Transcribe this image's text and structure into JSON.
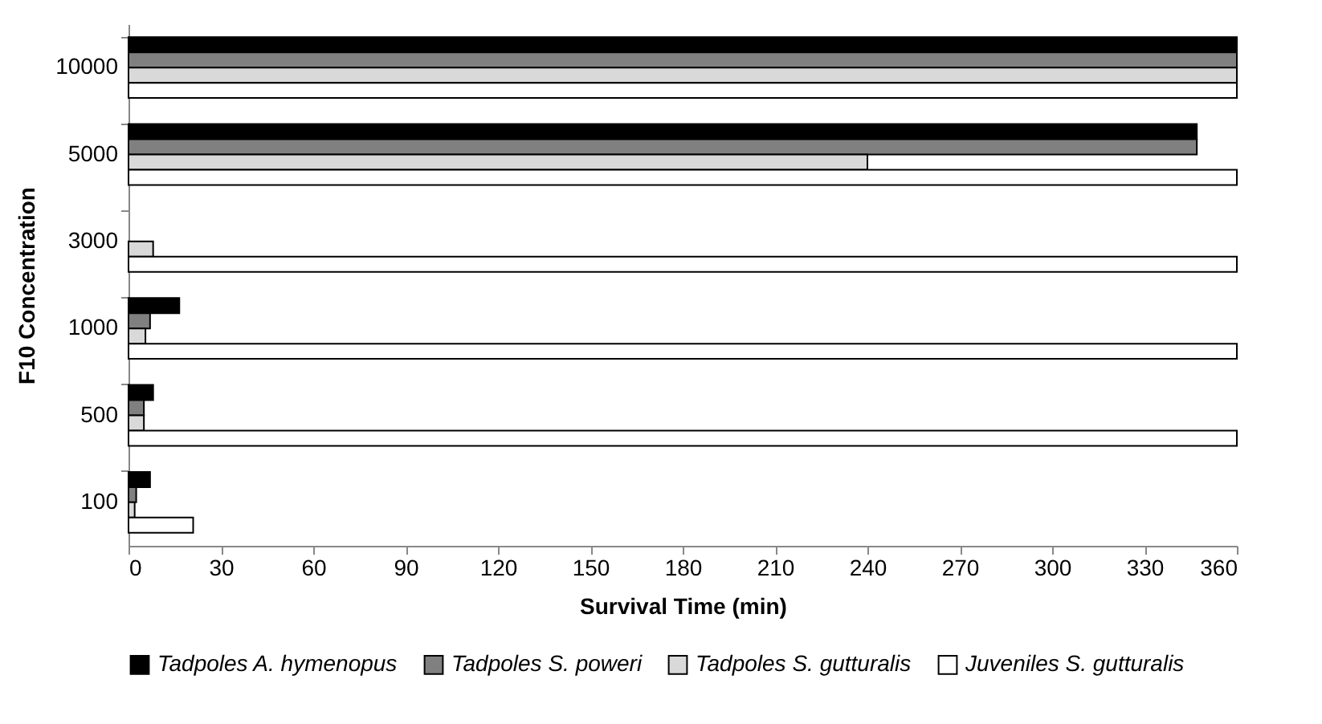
{
  "chart_data": {
    "type": "bar",
    "orientation": "horizontal",
    "xlabel": "Survival Time (min)",
    "ylabel": "F10 Concentration",
    "categories": [
      "10000",
      "5000",
      "3000",
      "1000",
      "500",
      "100"
    ],
    "series": [
      {
        "name": "Tadpoles A. hymenopus",
        "color": "#000000",
        "values": [
          360,
          347,
          null,
          16.5,
          8,
          7
        ]
      },
      {
        "name": "Tadpoles S. poweri",
        "color": "#808080",
        "values": [
          360,
          347,
          null,
          7,
          5,
          2.5
        ]
      },
      {
        "name": "Tadpoles S. gutturalis",
        "color": "#d9d9d9",
        "values": [
          360,
          240,
          8,
          5.5,
          5,
          2
        ]
      },
      {
        "name": "Juveniles S. gutturalis",
        "color": "#ffffff",
        "values": [
          360,
          360,
          360,
          360,
          360,
          21
        ]
      }
    ],
    "xlim": [
      0,
      360
    ],
    "xticks": [
      0,
      30,
      60,
      90,
      120,
      150,
      180,
      210,
      240,
      270,
      300,
      330,
      360
    ],
    "grid": false,
    "legend": "bottom"
  }
}
